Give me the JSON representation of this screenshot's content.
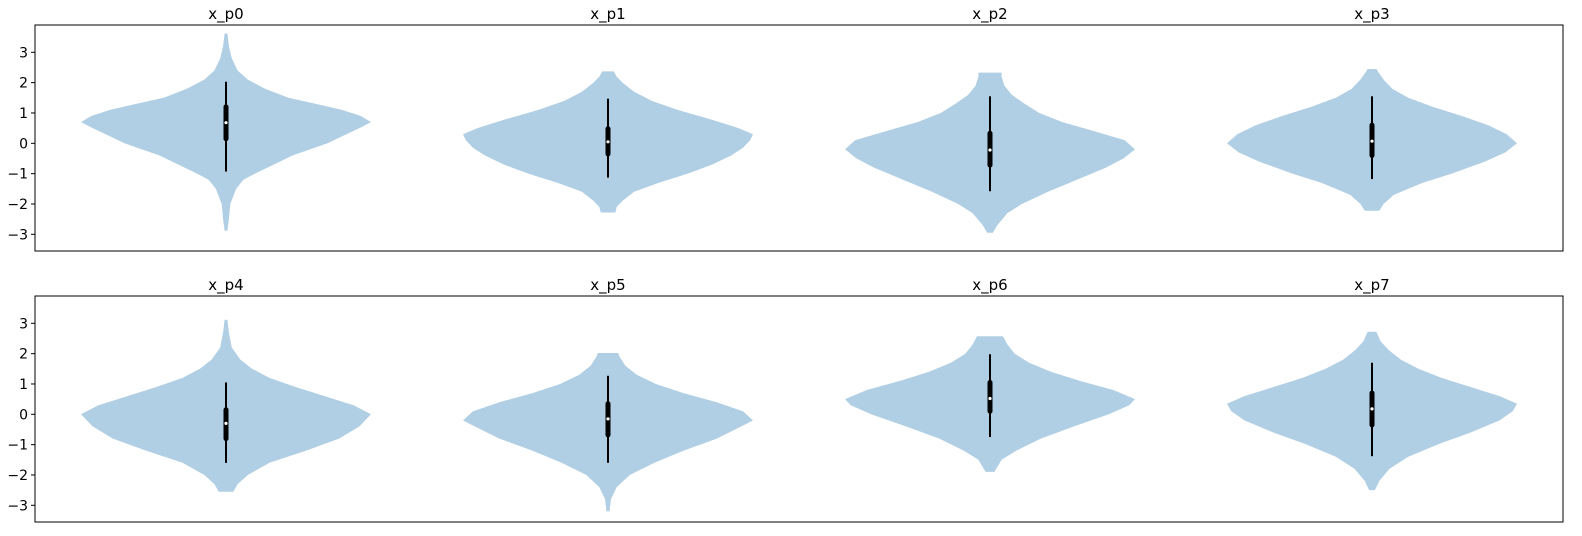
{
  "chart_data": {
    "type": "violin",
    "colors": {
      "violin_fill": "#b0cfe4",
      "whisker": "#000000",
      "median_marker": "#ffffff"
    },
    "rows": [
      {
        "ylim": [
          -3.55,
          3.9
        ],
        "yticks": [
          -3,
          -2,
          -1,
          0,
          1,
          2,
          3
        ],
        "ytick_labels": [
          "−3",
          "−2",
          "−1",
          "0",
          "1",
          "2",
          "3"
        ],
        "violins": [
          {
            "title": "x_p0",
            "min": -2.88,
            "max": 3.62,
            "q1": 0.15,
            "median": 0.68,
            "q3": 1.2,
            "whisker_low": -0.93,
            "whisker_high": 2.03,
            "profile": [
              [
                -2.88,
                0.01
              ],
              [
                -2.5,
                0.02
              ],
              [
                -2.0,
                0.03
              ],
              [
                -1.5,
                0.07
              ],
              [
                -1.2,
                0.12
              ],
              [
                -1.0,
                0.2
              ],
              [
                -0.7,
                0.33
              ],
              [
                -0.4,
                0.46
              ],
              [
                -0.2,
                0.58
              ],
              [
                0.0,
                0.7
              ],
              [
                0.3,
                0.83
              ],
              [
                0.5,
                0.92
              ],
              [
                0.7,
                1.0
              ],
              [
                0.9,
                0.93
              ],
              [
                1.1,
                0.8
              ],
              [
                1.3,
                0.62
              ],
              [
                1.5,
                0.43
              ],
              [
                1.8,
                0.27
              ],
              [
                2.1,
                0.15
              ],
              [
                2.4,
                0.08
              ],
              [
                2.8,
                0.04
              ],
              [
                3.2,
                0.02
              ],
              [
                3.62,
                0.01
              ]
            ]
          },
          {
            "title": "x_p1",
            "min": -2.28,
            "max": 2.37,
            "q1": -0.35,
            "median": 0.05,
            "q3": 0.48,
            "whisker_low": -1.13,
            "whisker_high": 1.47,
            "profile": [
              [
                -2.28,
                0.05
              ],
              [
                -2.1,
                0.06
              ],
              [
                -1.9,
                0.1
              ],
              [
                -1.6,
                0.18
              ],
              [
                -1.3,
                0.35
              ],
              [
                -1.0,
                0.55
              ],
              [
                -0.7,
                0.72
              ],
              [
                -0.4,
                0.85
              ],
              [
                -0.15,
                0.93
              ],
              [
                0.1,
                0.98
              ],
              [
                0.3,
                1.0
              ],
              [
                0.5,
                0.9
              ],
              [
                0.8,
                0.7
              ],
              [
                1.1,
                0.48
              ],
              [
                1.4,
                0.3
              ],
              [
                1.7,
                0.18
              ],
              [
                2.0,
                0.1
              ],
              [
                2.2,
                0.06
              ],
              [
                2.37,
                0.04
              ]
            ]
          },
          {
            "title": "x_p2",
            "min": -2.95,
            "max": 2.33,
            "q1": -0.72,
            "median": -0.22,
            "q3": 0.33,
            "whisker_low": -1.58,
            "whisker_high": 1.55,
            "profile": [
              [
                -2.95,
                0.02
              ],
              [
                -2.7,
                0.05
              ],
              [
                -2.3,
                0.12
              ],
              [
                -2.0,
                0.22
              ],
              [
                -1.6,
                0.4
              ],
              [
                -1.2,
                0.6
              ],
              [
                -0.8,
                0.8
              ],
              [
                -0.5,
                0.92
              ],
              [
                -0.2,
                1.0
              ],
              [
                0.1,
                0.93
              ],
              [
                0.4,
                0.72
              ],
              [
                0.7,
                0.5
              ],
              [
                1.0,
                0.34
              ],
              [
                1.3,
                0.24
              ],
              [
                1.6,
                0.15
              ],
              [
                1.9,
                0.1
              ],
              [
                2.2,
                0.08
              ],
              [
                2.33,
                0.08
              ]
            ]
          },
          {
            "title": "x_p3",
            "min": -2.22,
            "max": 2.45,
            "q1": -0.4,
            "median": 0.07,
            "q3": 0.6,
            "whisker_low": -1.18,
            "whisker_high": 1.55,
            "profile": [
              [
                -2.22,
                0.05
              ],
              [
                -2.0,
                0.08
              ],
              [
                -1.7,
                0.15
              ],
              [
                -1.3,
                0.35
              ],
              [
                -1.0,
                0.55
              ],
              [
                -0.6,
                0.78
              ],
              [
                -0.3,
                0.92
              ],
              [
                0.0,
                1.0
              ],
              [
                0.3,
                0.93
              ],
              [
                0.6,
                0.8
              ],
              [
                0.9,
                0.62
              ],
              [
                1.2,
                0.42
              ],
              [
                1.5,
                0.25
              ],
              [
                1.8,
                0.14
              ],
              [
                2.1,
                0.08
              ],
              [
                2.3,
                0.05
              ],
              [
                2.45,
                0.03
              ]
            ]
          }
        ]
      },
      {
        "ylim": [
          -3.55,
          3.9
        ],
        "yticks": [
          -3,
          -2,
          -1,
          0,
          1,
          2,
          3
        ],
        "ytick_labels": [
          "−3",
          "−2",
          "−1",
          "0",
          "1",
          "2",
          "3"
        ],
        "violins": [
          {
            "title": "x_p4",
            "min": -2.55,
            "max": 3.12,
            "q1": -0.8,
            "median": -0.3,
            "q3": 0.15,
            "whisker_low": -1.6,
            "whisker_high": 1.05,
            "profile": [
              [
                -2.55,
                0.05
              ],
              [
                -2.3,
                0.08
              ],
              [
                -2.0,
                0.15
              ],
              [
                -1.6,
                0.3
              ],
              [
                -1.2,
                0.55
              ],
              [
                -0.8,
                0.78
              ],
              [
                -0.4,
                0.92
              ],
              [
                0.0,
                1.0
              ],
              [
                0.3,
                0.88
              ],
              [
                0.6,
                0.68
              ],
              [
                0.9,
                0.48
              ],
              [
                1.2,
                0.3
              ],
              [
                1.5,
                0.18
              ],
              [
                1.8,
                0.1
              ],
              [
                2.2,
                0.04
              ],
              [
                2.7,
                0.02
              ],
              [
                3.12,
                0.01
              ]
            ]
          },
          {
            "title": "x_p5",
            "min": -3.2,
            "max": 2.02,
            "q1": -0.68,
            "median": -0.15,
            "q3": 0.35,
            "whisker_low": -1.6,
            "whisker_high": 1.27,
            "profile": [
              [
                -3.2,
                0.01
              ],
              [
                -2.8,
                0.02
              ],
              [
                -2.4,
                0.06
              ],
              [
                -2.0,
                0.15
              ],
              [
                -1.6,
                0.32
              ],
              [
                -1.2,
                0.52
              ],
              [
                -0.8,
                0.75
              ],
              [
                -0.4,
                0.92
              ],
              [
                -0.2,
                1.0
              ],
              [
                0.1,
                0.93
              ],
              [
                0.4,
                0.75
              ],
              [
                0.7,
                0.52
              ],
              [
                1.0,
                0.33
              ],
              [
                1.3,
                0.2
              ],
              [
                1.6,
                0.12
              ],
              [
                1.9,
                0.08
              ],
              [
                2.02,
                0.07
              ]
            ]
          },
          {
            "title": "x_p6",
            "min": -1.9,
            "max": 2.57,
            "q1": 0.1,
            "median": 0.52,
            "q3": 1.05,
            "whisker_low": -0.75,
            "whisker_high": 1.98,
            "profile": [
              [
                -1.9,
                0.03
              ],
              [
                -1.5,
                0.08
              ],
              [
                -1.2,
                0.18
              ],
              [
                -0.8,
                0.35
              ],
              [
                -0.4,
                0.58
              ],
              [
                0.0,
                0.82
              ],
              [
                0.3,
                0.96
              ],
              [
                0.5,
                1.0
              ],
              [
                0.8,
                0.85
              ],
              [
                1.1,
                0.62
              ],
              [
                1.4,
                0.42
              ],
              [
                1.7,
                0.27
              ],
              [
                2.0,
                0.17
              ],
              [
                2.3,
                0.12
              ],
              [
                2.57,
                0.09
              ]
            ]
          },
          {
            "title": "x_p7",
            "min": -2.5,
            "max": 2.72,
            "q1": -0.35,
            "median": 0.18,
            "q3": 0.7,
            "whisker_low": -1.38,
            "whisker_high": 1.7,
            "profile": [
              [
                -2.5,
                0.02
              ],
              [
                -2.2,
                0.05
              ],
              [
                -1.8,
                0.12
              ],
              [
                -1.4,
                0.25
              ],
              [
                -1.0,
                0.45
              ],
              [
                -0.6,
                0.68
              ],
              [
                -0.2,
                0.88
              ],
              [
                0.1,
                0.97
              ],
              [
                0.35,
                1.0
              ],
              [
                0.6,
                0.88
              ],
              [
                0.9,
                0.68
              ],
              [
                1.2,
                0.48
              ],
              [
                1.5,
                0.32
              ],
              [
                1.8,
                0.2
              ],
              [
                2.1,
                0.12
              ],
              [
                2.4,
                0.06
              ],
              [
                2.72,
                0.03
              ]
            ]
          }
        ]
      }
    ]
  }
}
